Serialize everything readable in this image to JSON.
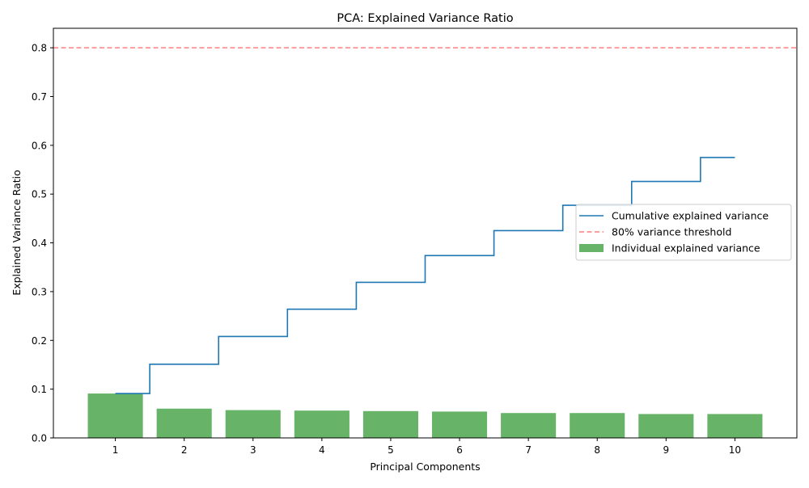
{
  "chart_data": {
    "type": "bar",
    "title": "PCA: Explained Variance Ratio",
    "xlabel": "Principal Components",
    "ylabel": "Explained Variance Ratio",
    "categories": [
      "1",
      "2",
      "3",
      "4",
      "5",
      "6",
      "7",
      "8",
      "9",
      "10"
    ],
    "x": [
      1,
      2,
      3,
      4,
      5,
      6,
      7,
      8,
      9,
      10
    ],
    "xlim": [
      0.1,
      10.9
    ],
    "ylim": [
      0,
      0.84
    ],
    "yticks": [
      0.0,
      0.1,
      0.2,
      0.3,
      0.4,
      0.5,
      0.6,
      0.7,
      0.8
    ],
    "ytick_labels": [
      "0.0",
      "0.1",
      "0.2",
      "0.3",
      "0.4",
      "0.5",
      "0.6",
      "0.7",
      "0.8"
    ],
    "grid": false,
    "legend_position": "center-right",
    "series": [
      {
        "name": "Individual explained variance",
        "type": "bar",
        "color": "#4ca64c",
        "alpha": 0.85,
        "values": [
          0.091,
          0.06,
          0.057,
          0.056,
          0.055,
          0.054,
          0.051,
          0.051,
          0.049,
          0.049
        ]
      },
      {
        "name": "Cumulative explained variance",
        "type": "step",
        "color": "#1f77b4",
        "values": [
          0.091,
          0.151,
          0.208,
          0.264,
          0.319,
          0.374,
          0.425,
          0.477,
          0.526,
          0.575
        ]
      }
    ],
    "threshold": {
      "name": "80% variance threshold",
      "value": 0.8,
      "color": "#ff7f7f",
      "style": "dashed"
    }
  }
}
